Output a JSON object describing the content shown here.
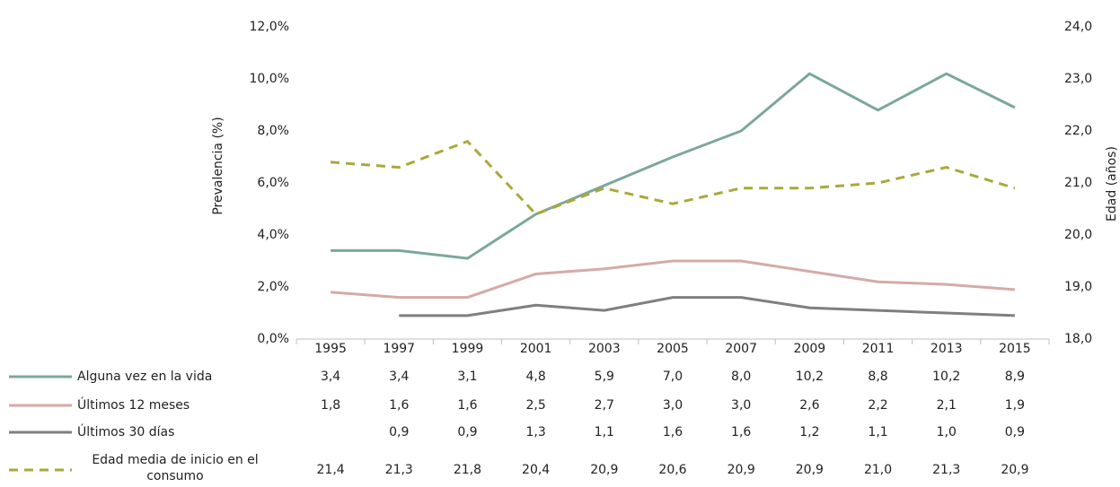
{
  "chart_data": {
    "type": "line",
    "categories": [
      "1995",
      "1997",
      "1999",
      "2001",
      "2003",
      "2005",
      "2007",
      "2009",
      "2011",
      "2013",
      "2015"
    ],
    "ylabel": "Prevalencia (%)",
    "y2label": "Edad (años)",
    "ylim": [
      0,
      12
    ],
    "yticks": [
      {
        "value": 0,
        "label": "0,0%"
      },
      {
        "value": 2,
        "label": "2,0%"
      },
      {
        "value": 4,
        "label": "4,0%"
      },
      {
        "value": 6,
        "label": "6,0%"
      },
      {
        "value": 8,
        "label": "8,0%"
      },
      {
        "value": 10,
        "label": "10,0%"
      },
      {
        "value": 12,
        "label": "12,0%"
      }
    ],
    "y2lim": [
      18,
      24
    ],
    "y2ticks": [
      {
        "value": 18,
        "label": "18,0"
      },
      {
        "value": 19,
        "label": "19,0"
      },
      {
        "value": 20,
        "label": "20,0"
      },
      {
        "value": 21,
        "label": "21,0"
      },
      {
        "value": 22,
        "label": "22,0"
      },
      {
        "value": 23,
        "label": "23,0"
      },
      {
        "value": 24,
        "label": "24,0"
      }
    ],
    "series": [
      {
        "name": "Alguna vez en la vida",
        "color": "#7ba79d",
        "values": [
          3.4,
          3.4,
          3.1,
          4.8,
          5.9,
          7.0,
          8.0,
          10.2,
          8.8,
          10.2,
          8.9
        ],
        "value_labels": [
          "3,4",
          "3,4",
          "3,1",
          "4,8",
          "5,9",
          "7,0",
          "8,0",
          "10,2",
          "8,8",
          "10,2",
          "8,9"
        ]
      },
      {
        "name": "Últimos 12 meses",
        "color": "#d5aaa7",
        "values": [
          1.8,
          1.6,
          1.6,
          2.5,
          2.7,
          3.0,
          3.0,
          2.6,
          2.2,
          2.1,
          1.9
        ],
        "value_labels": [
          "1,8",
          "1,6",
          "1,6",
          "2,5",
          "2,7",
          "3,0",
          "3,0",
          "2,6",
          "2,2",
          "2,1",
          "1,9"
        ]
      },
      {
        "name": "Últimos 30 días",
        "color": "#7f7f7f",
        "values": [
          null,
          0.9,
          0.9,
          1.3,
          1.1,
          1.6,
          1.6,
          1.2,
          1.1,
          1.0,
          0.9
        ],
        "value_labels": [
          null,
          "0,9",
          "0,9",
          "1,3",
          "1,1",
          "1,6",
          "1,6",
          "1,2",
          "1,1",
          "1,0",
          "0,9"
        ]
      },
      {
        "name": "Edad media de inicio en el consumo",
        "color": "#aaa83c",
        "axis": "y2",
        "dashed": true,
        "values": [
          21.4,
          21.3,
          21.8,
          20.4,
          20.9,
          20.6,
          20.9,
          20.9,
          21.0,
          21.3,
          20.9
        ],
        "value_labels": [
          "21,4",
          "21,3",
          "21,8",
          "20,4",
          "20,9",
          "20,6",
          "20,9",
          "20,9",
          "21,0",
          "21,3",
          "20,9"
        ]
      }
    ]
  }
}
